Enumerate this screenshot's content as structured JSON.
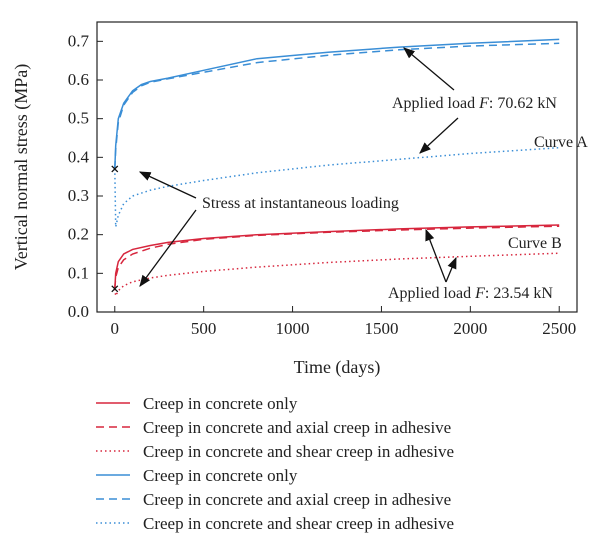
{
  "chart_data": {
    "type": "line",
    "xlabel": "Time (days)",
    "ylabel": "Vertical normal stress (MPa)",
    "xlim": [
      -100,
      2600
    ],
    "ylim": [
      0.0,
      0.75
    ],
    "x_ticks": [
      0,
      500,
      1000,
      1500,
      2000,
      2500
    ],
    "y_ticks": [
      0.0,
      0.1,
      0.2,
      0.3,
      0.4,
      0.5,
      0.6,
      0.7
    ],
    "x_tick_labels": [
      "0",
      "500",
      "1000",
      "1500",
      "2000",
      "2500"
    ],
    "y_tick_labels": [
      "0.0",
      "0.1",
      "0.2",
      "0.3",
      "0.4",
      "0.5",
      "0.6",
      "0.7"
    ],
    "grid": false,
    "series": [
      {
        "name": "Creep in concrete only",
        "color": "#d7263d",
        "dash": "solid",
        "x": [
          0,
          5,
          20,
          50,
          100,
          200,
          300,
          500,
          800,
          1200,
          1600,
          2000,
          2500
        ],
        "y": [
          0.06,
          0.1,
          0.13,
          0.15,
          0.162,
          0.172,
          0.18,
          0.19,
          0.2,
          0.208,
          0.215,
          0.22,
          0.225
        ]
      },
      {
        "name": "Creep in concrete and axial creep in adhesive",
        "color": "#d7263d",
        "dash": "dashed",
        "x": [
          0,
          5,
          20,
          50,
          100,
          200,
          300,
          500,
          800,
          1200,
          1600,
          2000,
          2500
        ],
        "y": [
          0.06,
          0.09,
          0.115,
          0.135,
          0.15,
          0.165,
          0.175,
          0.188,
          0.198,
          0.206,
          0.212,
          0.217,
          0.222
        ]
      },
      {
        "name": "Creep in concrete and shear creep in adhesive",
        "color": "#d7263d",
        "dash": "dotted",
        "x": [
          0,
          5,
          20,
          50,
          100,
          200,
          300,
          500,
          800,
          1200,
          1600,
          2000,
          2500
        ],
        "y": [
          0.06,
          0.042,
          0.055,
          0.068,
          0.078,
          0.088,
          0.095,
          0.105,
          0.116,
          0.128,
          0.137,
          0.144,
          0.152
        ]
      },
      {
        "name": "Creep in concrete only",
        "color": "#3a8ed6",
        "dash": "solid",
        "x": [
          0,
          5,
          20,
          50,
          100,
          150,
          200,
          300,
          500,
          800,
          1200,
          1600,
          2000,
          2500
        ],
        "y": [
          0.37,
          0.43,
          0.5,
          0.54,
          0.572,
          0.588,
          0.596,
          0.605,
          0.625,
          0.655,
          0.672,
          0.685,
          0.695,
          0.705
        ]
      },
      {
        "name": "Creep in concrete and axial creep in adhesive",
        "color": "#3a8ed6",
        "dash": "dashed",
        "x": [
          0,
          5,
          20,
          50,
          100,
          150,
          200,
          300,
          500,
          800,
          1200,
          1600,
          2000,
          2500
        ],
        "y": [
          0.37,
          0.42,
          0.49,
          0.535,
          0.568,
          0.585,
          0.594,
          0.603,
          0.62,
          0.645,
          0.664,
          0.678,
          0.688,
          0.695
        ]
      },
      {
        "name": "Creep in concrete and shear creep in adhesive",
        "color": "#3a8ed6",
        "dash": "dotted",
        "x": [
          0,
          5,
          20,
          50,
          100,
          200,
          300,
          500,
          800,
          1200,
          1600,
          2000,
          2500
        ],
        "y": [
          0.37,
          0.22,
          0.25,
          0.28,
          0.3,
          0.315,
          0.325,
          0.34,
          0.36,
          0.38,
          0.395,
          0.41,
          0.425
        ]
      }
    ],
    "markers": [
      {
        "x": 0,
        "y": 0.37
      },
      {
        "x": 0,
        "y": 0.06
      }
    ],
    "annotations": {
      "applied_load_a": {
        "prefix": "Applied load ",
        "var": "F",
        "suffix": ": 70.62 kN"
      },
      "curve_a": "Curve A",
      "stress_instant": "Stress at instantaneous loading",
      "curve_b": "Curve B",
      "applied_load_b": {
        "prefix": "Applied load ",
        "var": "F",
        "suffix": ": 23.54 kN"
      }
    },
    "legend": {
      "placement": "bottom"
    }
  }
}
